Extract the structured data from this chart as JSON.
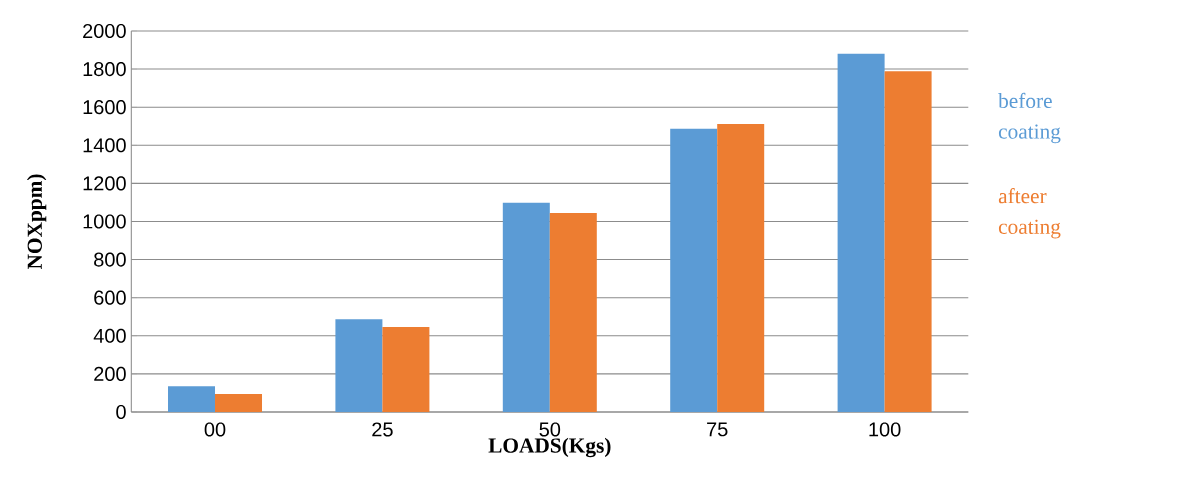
{
  "chart_data": {
    "type": "bar",
    "xlabel": "LOADS(Kgs)",
    "ylabel": "NOXppm)",
    "categories": [
      "00",
      "25",
      "50",
      "75",
      "100"
    ],
    "series": [
      {
        "name": "before coating",
        "color": "#5b9bd5",
        "values": [
          135,
          487,
          1099,
          1487,
          1880
        ]
      },
      {
        "name": "afteer coating",
        "color": "#ed7d31",
        "values": [
          94,
          446,
          1045,
          1512,
          1789
        ]
      }
    ],
    "ylim": [
      0,
      2000
    ],
    "yticks": [
      0,
      200,
      400,
      600,
      800,
      1000,
      1200,
      1400,
      1600,
      1800,
      2000
    ],
    "grid": "y",
    "legend": "right"
  }
}
